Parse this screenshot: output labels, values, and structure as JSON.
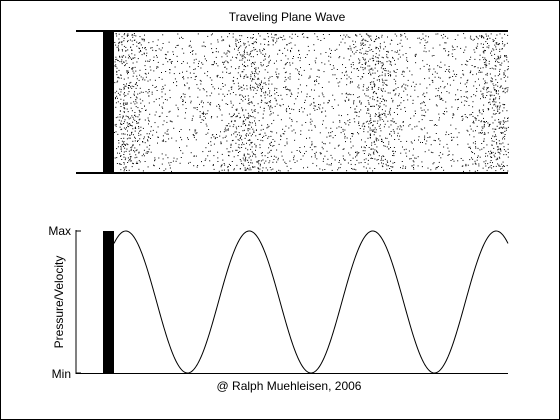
{
  "title": "Traveling Plane Wave",
  "credit": "@ Ralph Muehleisen, 2006",
  "colors": {
    "background": "#ffffff",
    "ink": "#000000"
  },
  "chart_data": {
    "type": "line",
    "title": "Traveling Plane Wave",
    "xlabel": "",
    "ylabel": "Pressure/Velocity",
    "yticks": [
      "Max",
      "Min"
    ],
    "ylim": [
      -1,
      1
    ],
    "wavelengths_visible": 3.3,
    "peaks_at_fraction_of_tube": [
      0.03,
      0.34,
      0.65,
      0.97
    ],
    "grid": false
  }
}
